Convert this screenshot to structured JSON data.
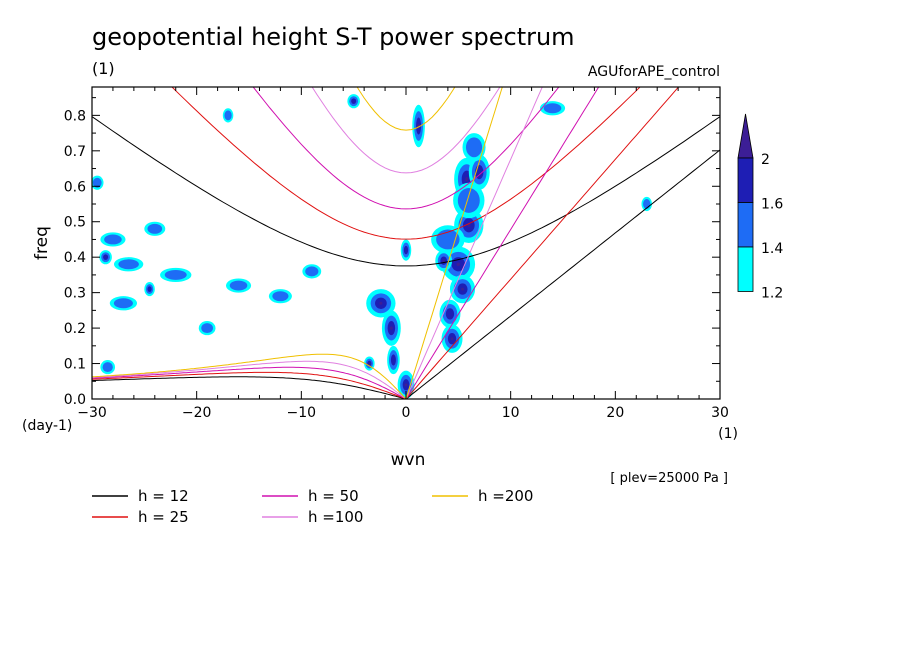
{
  "chart_data": {
    "type": "heatmap",
    "title": "geopotential height S-T power spectrum",
    "subtitle": "(1)",
    "experiment": "AGUforAPE_control",
    "xlabel": "wvn",
    "ylabel": "freq",
    "x_unit": "(1)",
    "y_unit": "(day-1)",
    "level_note": "[ plev=25000 Pa ]",
    "xlim": [
      -30,
      30
    ],
    "ylim": [
      0,
      0.88
    ],
    "xticks": [
      -30,
      -20,
      -10,
      0,
      10,
      20,
      30
    ],
    "yticks": [
      0.0,
      0.1,
      0.2,
      0.3,
      0.4,
      0.5,
      0.6,
      0.7,
      0.8
    ],
    "colorbar": {
      "levels": [
        1.2,
        1.4,
        1.6,
        2
      ],
      "labels": [
        "1.2",
        "1.4",
        "1.6",
        "2"
      ],
      "colors": [
        "#00ffff",
        "#1e6cf5",
        "#1e1eb4",
        "#3c1e96"
      ]
    },
    "dispersion_curves": [
      {
        "name": "h = 12",
        "h": 12,
        "color": "#000000"
      },
      {
        "name": "h = 25",
        "h": 25,
        "color": "#e01010"
      },
      {
        "name": "h = 50",
        "h": 50,
        "color": "#d010b0"
      },
      {
        "name": "h =100",
        "h": 100,
        "color": "#e080e0"
      },
      {
        "name": "h =200",
        "h": 200,
        "color": "#f0c000"
      }
    ],
    "power_blobs": [
      {
        "x": 1.2,
        "y": 0.77,
        "rx": 0.6,
        "ry": 0.06,
        "level": 3
      },
      {
        "x": 5.8,
        "y": 0.62,
        "rx": 1.2,
        "ry": 0.06,
        "level": 3
      },
      {
        "x": 7.0,
        "y": 0.64,
        "rx": 1.0,
        "ry": 0.05,
        "level": 2
      },
      {
        "x": 6.0,
        "y": 0.49,
        "rx": 1.4,
        "ry": 0.05,
        "level": 3
      },
      {
        "x": 5.0,
        "y": 0.38,
        "rx": 1.6,
        "ry": 0.05,
        "level": 3
      },
      {
        "x": 5.4,
        "y": 0.31,
        "rx": 1.2,
        "ry": 0.04,
        "level": 3
      },
      {
        "x": 4.2,
        "y": 0.24,
        "rx": 1.0,
        "ry": 0.04,
        "level": 2
      },
      {
        "x": 4.4,
        "y": 0.17,
        "rx": 1.0,
        "ry": 0.04,
        "level": 3
      },
      {
        "x": 4.0,
        "y": 0.45,
        "rx": 1.6,
        "ry": 0.04,
        "level": 1
      },
      {
        "x": 6.0,
        "y": 0.56,
        "rx": 1.5,
        "ry": 0.05,
        "level": 1
      },
      {
        "x": 6.5,
        "y": 0.71,
        "rx": 1.1,
        "ry": 0.04,
        "level": 1
      },
      {
        "x": -1.4,
        "y": 0.2,
        "rx": 0.9,
        "ry": 0.05,
        "level": 3
      },
      {
        "x": -2.4,
        "y": 0.27,
        "rx": 1.4,
        "ry": 0.04,
        "level": 3
      },
      {
        "x": -1.2,
        "y": 0.11,
        "rx": 0.6,
        "ry": 0.04,
        "level": 2
      },
      {
        "x": 0.0,
        "y": 0.04,
        "rx": 0.8,
        "ry": 0.04,
        "level": 3
      },
      {
        "x": 0.0,
        "y": 0.42,
        "rx": 0.5,
        "ry": 0.03,
        "level": 2
      },
      {
        "x": 3.6,
        "y": 0.39,
        "rx": 0.8,
        "ry": 0.03,
        "level": 3
      },
      {
        "x": -5.0,
        "y": 0.84,
        "rx": 0.6,
        "ry": 0.02,
        "level": 2
      },
      {
        "x": -3.5,
        "y": 0.1,
        "rx": 0.5,
        "ry": 0.02,
        "level": 3
      },
      {
        "x": -26.5,
        "y": 0.38,
        "rx": 1.4,
        "ry": 0.02,
        "level": 1
      },
      {
        "x": -28.0,
        "y": 0.45,
        "rx": 1.2,
        "ry": 0.02,
        "level": 1
      },
      {
        "x": -22.0,
        "y": 0.35,
        "rx": 1.5,
        "ry": 0.02,
        "level": 1
      },
      {
        "x": -24.0,
        "y": 0.48,
        "rx": 1.0,
        "ry": 0.02,
        "level": 1
      },
      {
        "x": -27.0,
        "y": 0.27,
        "rx": 1.3,
        "ry": 0.02,
        "level": 1
      },
      {
        "x": -16.0,
        "y": 0.32,
        "rx": 1.2,
        "ry": 0.02,
        "level": 1
      },
      {
        "x": -12.0,
        "y": 0.29,
        "rx": 1.1,
        "ry": 0.02,
        "level": 1
      },
      {
        "x": -9.0,
        "y": 0.36,
        "rx": 0.9,
        "ry": 0.02,
        "level": 1
      },
      {
        "x": -19.0,
        "y": 0.2,
        "rx": 0.8,
        "ry": 0.02,
        "level": 1
      },
      {
        "x": -29.5,
        "y": 0.61,
        "rx": 0.6,
        "ry": 0.02,
        "level": 1
      },
      {
        "x": -17.0,
        "y": 0.8,
        "rx": 0.5,
        "ry": 0.02,
        "level": 1
      },
      {
        "x": -28.5,
        "y": 0.09,
        "rx": 0.7,
        "ry": 0.02,
        "level": 1
      },
      {
        "x": 14.0,
        "y": 0.82,
        "rx": 1.2,
        "ry": 0.02,
        "level": 1
      },
      {
        "x": 23.0,
        "y": 0.55,
        "rx": 0.5,
        "ry": 0.02,
        "level": 1
      },
      {
        "x": -24.5,
        "y": 0.31,
        "rx": 0.5,
        "ry": 0.02,
        "level": 2
      },
      {
        "x": -28.7,
        "y": 0.4,
        "rx": 0.6,
        "ry": 0.02,
        "level": 2
      }
    ]
  },
  "legend": [
    {
      "label": "h = 12",
      "color": "#000000"
    },
    {
      "label": "h = 50",
      "color": "#d010b0"
    },
    {
      "label": "h =200",
      "color": "#f0c000"
    },
    {
      "label": "h = 25",
      "color": "#e01010"
    },
    {
      "label": "h =100",
      "color": "#e080e0"
    }
  ]
}
